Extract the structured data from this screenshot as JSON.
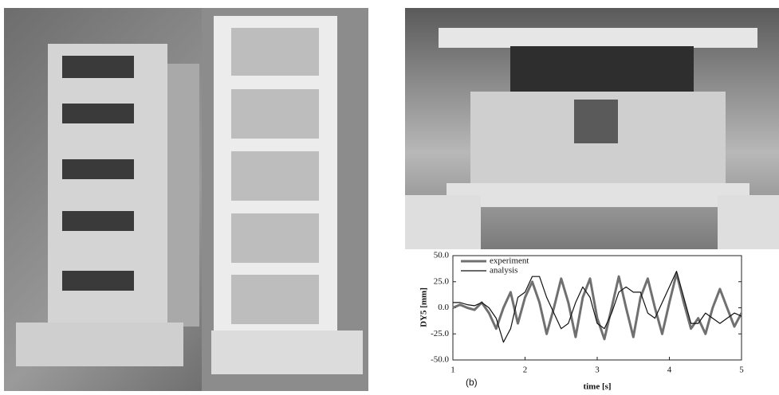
{
  "chart_data": {
    "type": "line",
    "panel_label": "(b)",
    "xlabel": "time [s]",
    "ylabel": "DY5 [mm]",
    "x": [
      1.0,
      1.1,
      1.2,
      1.3,
      1.4,
      1.5,
      1.6,
      1.7,
      1.8,
      1.9,
      2.0,
      2.1,
      2.2,
      2.3,
      2.4,
      2.5,
      2.6,
      2.7,
      2.8,
      2.9,
      3.0,
      3.1,
      3.2,
      3.3,
      3.4,
      3.5,
      3.6,
      3.7,
      3.8,
      3.9,
      4.0,
      4.1,
      4.2,
      4.3,
      4.4,
      4.5,
      4.6,
      4.7,
      4.8,
      4.9,
      5.0
    ],
    "series": [
      {
        "name": "experiment",
        "color": "#707070",
        "width": 3,
        "values": [
          0,
          3,
          0,
          -2,
          5,
          -5,
          -20,
          0,
          15,
          -15,
          10,
          25,
          5,
          -25,
          0,
          28,
          5,
          -28,
          10,
          28,
          -10,
          -30,
          0,
          30,
          0,
          -28,
          10,
          28,
          0,
          -25,
          5,
          33,
          5,
          -20,
          -10,
          -25,
          0,
          18,
          0,
          -18,
          -5
        ]
      },
      {
        "name": "analysis",
        "color": "#111111",
        "width": 1.2,
        "values": [
          5,
          5,
          3,
          2,
          5,
          0,
          -10,
          -33,
          -20,
          10,
          15,
          30,
          30,
          10,
          -5,
          -20,
          -15,
          5,
          20,
          10,
          -15,
          -20,
          -5,
          15,
          20,
          15,
          15,
          -5,
          -10,
          5,
          20,
          35,
          10,
          -15,
          -15,
          -5,
          -10,
          -15,
          -10,
          -5,
          -8
        ]
      }
    ],
    "xlim": [
      1,
      5
    ],
    "xticks": [
      1,
      2,
      3,
      4,
      5
    ],
    "ylim": [
      -50,
      50
    ],
    "yticks": [
      {
        "value": -50,
        "label": "-50.0"
      },
      {
        "value": -25,
        "label": "-25.0"
      },
      {
        "value": 0,
        "label": "0.0"
      },
      {
        "value": 25,
        "label": "25.0"
      },
      {
        "value": 50,
        "label": "50.0"
      }
    ],
    "grid": false,
    "legend": "upper-left"
  }
}
